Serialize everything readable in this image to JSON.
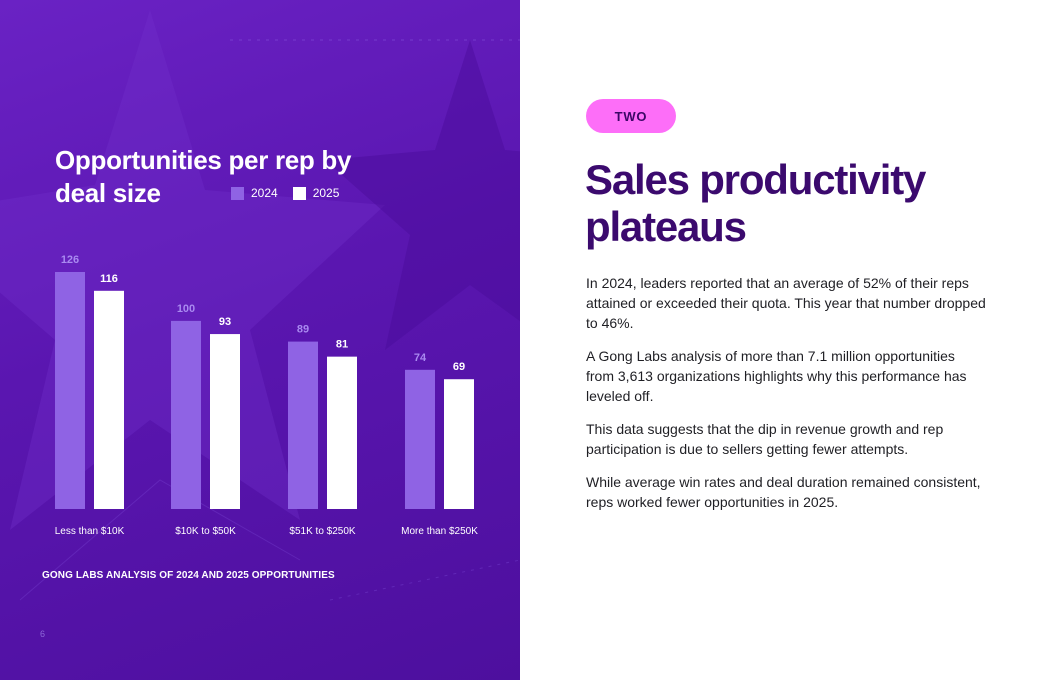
{
  "page": {
    "number": "6",
    "caption": "GONG LABS ANALYSIS OF 2024 AND 2025 OPPORTUNITIES"
  },
  "colors": {
    "panel_bg": "#5a16b0",
    "series_2024": "#8f63e4",
    "series_2025": "#ffffff",
    "label_2024": "#a98af0",
    "badge_bg": "#fd6ef8",
    "headline": "#3b0a6e"
  },
  "chart_data": {
    "type": "bar",
    "title": "Opportunities per rep by deal size",
    "categories": [
      "Less than $10K",
      "$10K to $50K",
      "$51K to $250K",
      "More than $250K"
    ],
    "series": [
      {
        "name": "2024",
        "values": [
          126,
          100,
          89,
          74
        ]
      },
      {
        "name": "2025",
        "values": [
          116,
          93,
          81,
          69
        ]
      }
    ],
    "ylim": [
      0,
      126
    ],
    "xlabel": "",
    "ylabel": "",
    "grid": false,
    "legend": "top-right"
  },
  "article": {
    "badge": "TWO",
    "headline": "Sales productivity plateaus",
    "paragraphs": [
      "In 2024, leaders reported that an average of 52% of their reps attained or exceeded their quota. This year that number dropped to 46%.",
      "A Gong Labs analysis of more than 7.1 million opportunities from 3,613 organizations highlights why this performance has leveled off.",
      "This data suggests that the dip in revenue growth and rep participation is due to sellers getting fewer attempts.",
      "While average win rates and deal duration remained consistent, reps worked fewer opportunities in 2025."
    ]
  }
}
